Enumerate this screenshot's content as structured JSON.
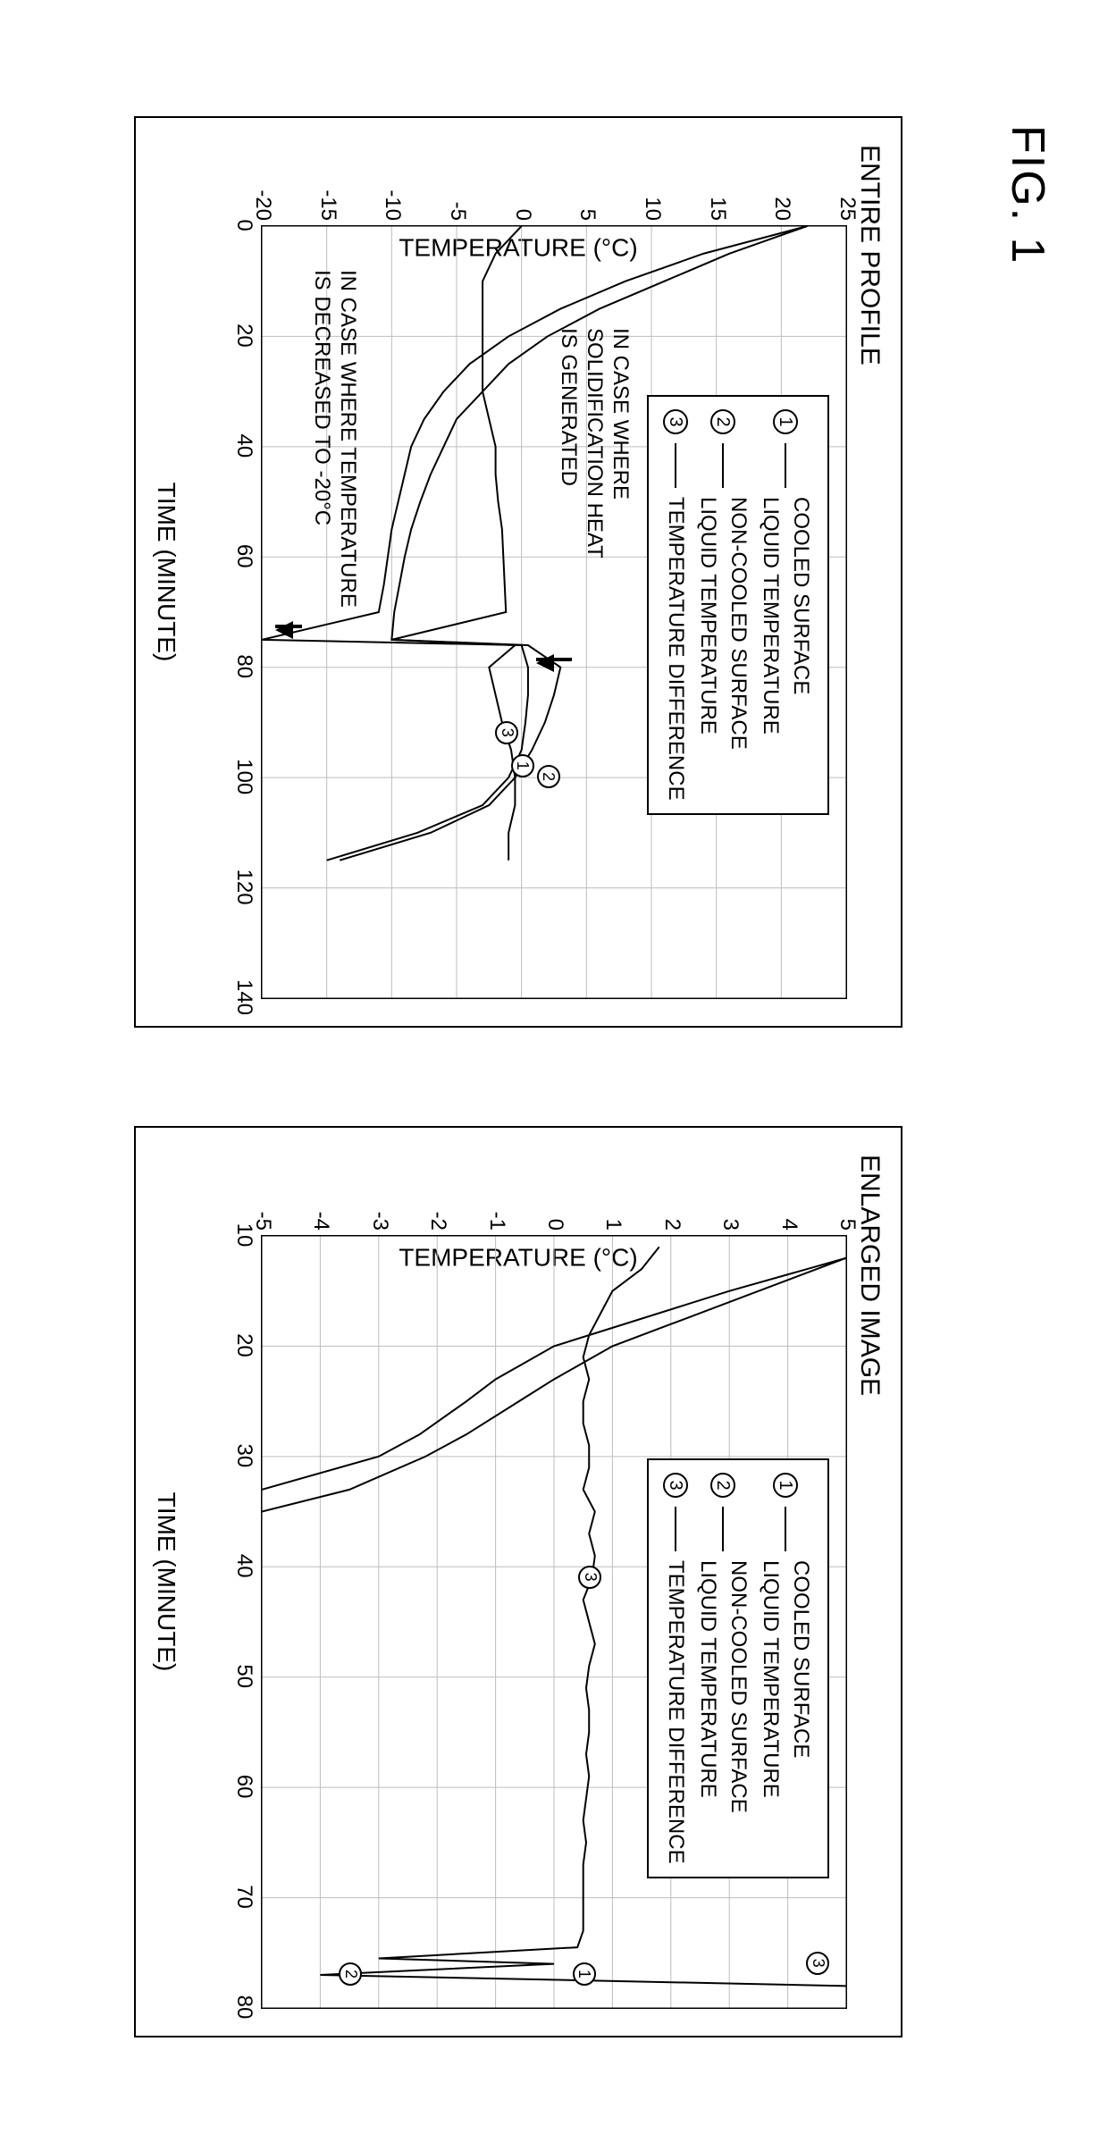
{
  "figure_label": "FIG. 1",
  "legend": {
    "items": [
      {
        "num": "1",
        "line1": "COOLED SURFACE",
        "line2": "LIQUID TEMPERATURE"
      },
      {
        "num": "2",
        "line1": "NON-COOLED SURFACE",
        "line2": "LIQUID TEMPERATURE"
      },
      {
        "num": "3",
        "line1": "TEMPERATURE DIFFERENCE",
        "line2": ""
      }
    ]
  },
  "left_chart": {
    "title": "ENTIRE PROFILE",
    "xlabel": "TIME (MINUTE)",
    "ylabel": "TEMPERATURE (°C)",
    "xlim": [
      0,
      140
    ],
    "ylim": [
      -20,
      25
    ],
    "xticks": [
      0,
      20,
      40,
      60,
      80,
      100,
      120,
      140
    ],
    "yticks": [
      -20,
      -15,
      -10,
      -5,
      0,
      5,
      10,
      15,
      20,
      25
    ],
    "background_color": "#ffffff",
    "grid_color": "#bdbdbd",
    "line_color": "#000000",
    "line_width": 2,
    "series1": [
      [
        0,
        22
      ],
      [
        5,
        14
      ],
      [
        10,
        8
      ],
      [
        15,
        3
      ],
      [
        20,
        -1
      ],
      [
        25,
        -4
      ],
      [
        30,
        -6
      ],
      [
        35,
        -7.5
      ],
      [
        40,
        -8.5
      ],
      [
        45,
        -9
      ],
      [
        50,
        -9.5
      ],
      [
        55,
        -10
      ],
      [
        60,
        -10.3
      ],
      [
        65,
        -10.6
      ],
      [
        70,
        -11
      ],
      [
        75,
        -20
      ],
      [
        76,
        0
      ],
      [
        80,
        0.5
      ],
      [
        85,
        0.5
      ],
      [
        90,
        0.3
      ],
      [
        95,
        0
      ],
      [
        100,
        -1
      ],
      [
        105,
        -3
      ],
      [
        110,
        -8
      ],
      [
        115,
        -15
      ]
    ],
    "series2": [
      [
        0,
        22
      ],
      [
        5,
        16
      ],
      [
        10,
        11
      ],
      [
        15,
        6
      ],
      [
        20,
        2
      ],
      [
        25,
        -1
      ],
      [
        30,
        -3
      ],
      [
        35,
        -5
      ],
      [
        40,
        -6
      ],
      [
        45,
        -7
      ],
      [
        50,
        -7.8
      ],
      [
        55,
        -8.5
      ],
      [
        60,
        -9
      ],
      [
        65,
        -9.4
      ],
      [
        70,
        -9.8
      ],
      [
        75,
        -10
      ],
      [
        76,
        0.5
      ],
      [
        80,
        3
      ],
      [
        85,
        2.5
      ],
      [
        90,
        1.8
      ],
      [
        95,
        0.8
      ],
      [
        100,
        -0.5
      ],
      [
        105,
        -2.5
      ],
      [
        110,
        -7
      ],
      [
        115,
        -14
      ]
    ],
    "series3": [
      [
        0,
        0
      ],
      [
        5,
        -2
      ],
      [
        10,
        -3
      ],
      [
        15,
        -3
      ],
      [
        20,
        -3
      ],
      [
        25,
        -3
      ],
      [
        30,
        -3
      ],
      [
        35,
        -2.5
      ],
      [
        40,
        -2
      ],
      [
        45,
        -2
      ],
      [
        50,
        -1.8
      ],
      [
        55,
        -1.5
      ],
      [
        60,
        -1.4
      ],
      [
        65,
        -1.3
      ],
      [
        70,
        -1.2
      ],
      [
        75,
        -10
      ],
      [
        76,
        -0.5
      ],
      [
        80,
        -2.5
      ],
      [
        85,
        -2
      ],
      [
        90,
        -1.5
      ],
      [
        95,
        -0.8
      ],
      [
        100,
        -0.5
      ],
      [
        105,
        -0.5
      ],
      [
        110,
        -1
      ],
      [
        115,
        -1
      ]
    ],
    "annotations": {
      "upper": "IN CASE WHERE\nSOLIDIFICATION HEAT\nIS GENERATED",
      "lower": "IN CASE WHERE TEMPERATURE\nIS DECREASED TO -20°C"
    },
    "markers": {
      "1": [
        98,
        0
      ],
      "2": [
        100,
        2
      ],
      "3": [
        92,
        -1.2
      ]
    }
  },
  "right_chart": {
    "title": "ENLARGED IMAGE",
    "xlabel": "TIME (MINUTE)",
    "ylabel": "TEMPERATURE (°C)",
    "xlim": [
      10,
      80
    ],
    "ylim": [
      -5,
      5
    ],
    "xticks": [
      10,
      20,
      30,
      40,
      50,
      60,
      70,
      80
    ],
    "yticks": [
      -5,
      -4,
      -3,
      -2,
      -1,
      0,
      1,
      2,
      3,
      4,
      5
    ],
    "background_color": "#ffffff",
    "grid_color": "#bdbdbd",
    "line_color": "#000000",
    "line_width": 2,
    "series1": [
      [
        12,
        5
      ],
      [
        15,
        3
      ],
      [
        18,
        1.2
      ],
      [
        20,
        0
      ],
      [
        23,
        -1
      ],
      [
        25,
        -1.5
      ],
      [
        28,
        -2.3
      ],
      [
        30,
        -3
      ],
      [
        33,
        -5
      ]
    ],
    "series2": [
      [
        12,
        5
      ],
      [
        15,
        3.5
      ],
      [
        18,
        2
      ],
      [
        20,
        1
      ],
      [
        23,
        0
      ],
      [
        25,
        -0.6
      ],
      [
        28,
        -1.5
      ],
      [
        30,
        -2.2
      ],
      [
        33,
        -3.5
      ],
      [
        35,
        -5
      ]
    ],
    "series3": [
      [
        11,
        1.8
      ],
      [
        13,
        1.5
      ],
      [
        15,
        1.0
      ],
      [
        17,
        0.8
      ],
      [
        19,
        0.6
      ],
      [
        21,
        0.5
      ],
      [
        23,
        0.6
      ],
      [
        25,
        0.5
      ],
      [
        27,
        0.5
      ],
      [
        29,
        0.6
      ],
      [
        31,
        0.6
      ],
      [
        33,
        0.5
      ],
      [
        35,
        0.7
      ],
      [
        37,
        0.6
      ],
      [
        39,
        0.7
      ],
      [
        41,
        0.65
      ],
      [
        43,
        0.5
      ],
      [
        45,
        0.6
      ],
      [
        47,
        0.7
      ],
      [
        49,
        0.6
      ],
      [
        51,
        0.55
      ],
      [
        53,
        0.6
      ],
      [
        55,
        0.6
      ],
      [
        57,
        0.55
      ],
      [
        59,
        0.6
      ],
      [
        61,
        0.55
      ],
      [
        63,
        0.5
      ],
      [
        65,
        0.55
      ],
      [
        67,
        0.5
      ],
      [
        69,
        0.5
      ],
      [
        71,
        0.5
      ],
      [
        73,
        0.5
      ],
      [
        74.5,
        0.4
      ],
      [
        75.5,
        -3
      ],
      [
        76,
        0
      ],
      [
        77,
        -4
      ],
      [
        78,
        5
      ]
    ],
    "markers": {
      "1": [
        77,
        0.5
      ],
      "2": [
        77,
        -3.5
      ],
      "3": [
        76,
        4.5
      ],
      "3b": [
        41,
        0.6
      ]
    }
  }
}
